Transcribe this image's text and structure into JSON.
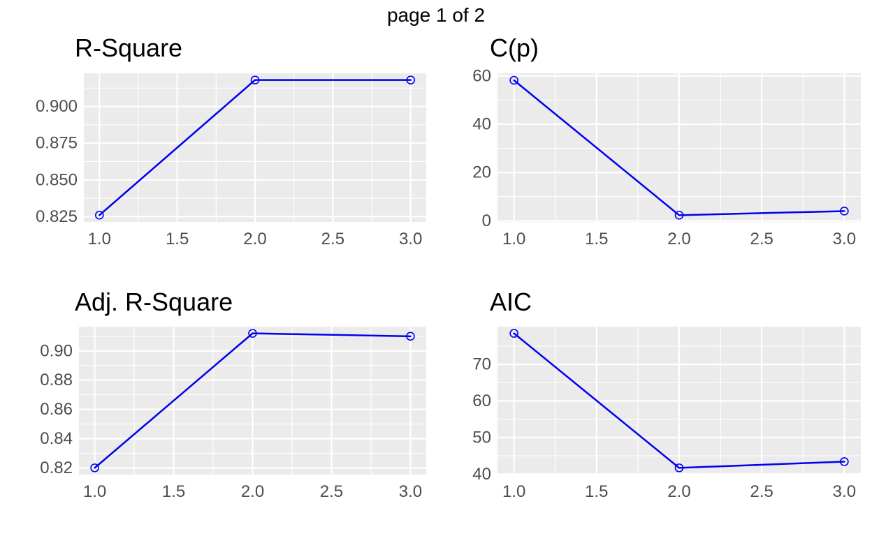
{
  "page_title": "page 1 of 2",
  "colors": {
    "background": "#ffffff",
    "panel_background": "#ebebeb",
    "gridline": "#ffffff",
    "series_line": "#0000ee",
    "axis_text": "#4d4d4d",
    "title_text": "#000000"
  },
  "chart_data": [
    {
      "type": "line",
      "title": "R-Square",
      "x": [
        1,
        2,
        3
      ],
      "values": [
        0.826,
        0.918,
        0.918
      ],
      "xticks": [
        1.0,
        1.5,
        2.0,
        2.5,
        3.0
      ],
      "xtick_labels": [
        "1.0",
        "1.5",
        "2.0",
        "2.5",
        "3.0"
      ],
      "yticks": [
        0.825,
        0.85,
        0.875,
        0.9
      ],
      "ytick_labels": [
        "0.825",
        "0.850",
        "0.875",
        "0.900"
      ],
      "xlim": [
        0.9,
        3.1
      ],
      "ylim": [
        0.8214,
        0.9226
      ],
      "grid": "major+minor",
      "legend": "none",
      "marker": "open-circle"
    },
    {
      "type": "line",
      "title": "C(p)",
      "x": [
        1,
        2,
        3
      ],
      "values": [
        58.2,
        2.3,
        4.0
      ],
      "xticks": [
        1.0,
        1.5,
        2.0,
        2.5,
        3.0
      ],
      "xtick_labels": [
        "1.0",
        "1.5",
        "2.0",
        "2.5",
        "3.0"
      ],
      "yticks": [
        0,
        20,
        40,
        60
      ],
      "ytick_labels": [
        "0",
        "20",
        "40",
        "60"
      ],
      "xlim": [
        0.9,
        3.1
      ],
      "ylim": [
        -0.5,
        61.1
      ],
      "grid": "major+minor",
      "legend": "none",
      "marker": "open-circle"
    },
    {
      "type": "line",
      "title": "Adj. R-Square",
      "x": [
        1,
        2,
        3
      ],
      "values": [
        0.82,
        0.912,
        0.91
      ],
      "xticks": [
        1.0,
        1.5,
        2.0,
        2.5,
        3.0
      ],
      "xtick_labels": [
        "1.0",
        "1.5",
        "2.0",
        "2.5",
        "3.0"
      ],
      "yticks": [
        0.82,
        0.84,
        0.86,
        0.88,
        0.9
      ],
      "ytick_labels": [
        "0.82",
        "0.84",
        "0.86",
        "0.88",
        "0.90"
      ],
      "xlim": [
        0.9,
        3.1
      ],
      "ylim": [
        0.8154,
        0.9166
      ],
      "grid": "major+minor",
      "legend": "none",
      "marker": "open-circle"
    },
    {
      "type": "line",
      "title": "AIC",
      "x": [
        1,
        2,
        3
      ],
      "values": [
        78.5,
        41.7,
        43.4
      ],
      "xticks": [
        1.0,
        1.5,
        2.0,
        2.5,
        3.0
      ],
      "xtick_labels": [
        "1.0",
        "1.5",
        "2.0",
        "2.5",
        "3.0"
      ],
      "yticks": [
        40,
        50,
        60,
        70
      ],
      "ytick_labels": [
        "40",
        "50",
        "60",
        "70"
      ],
      "xlim": [
        0.9,
        3.1
      ],
      "ylim": [
        39.86,
        80.34
      ],
      "grid": "major+minor",
      "legend": "none",
      "marker": "open-circle"
    }
  ]
}
